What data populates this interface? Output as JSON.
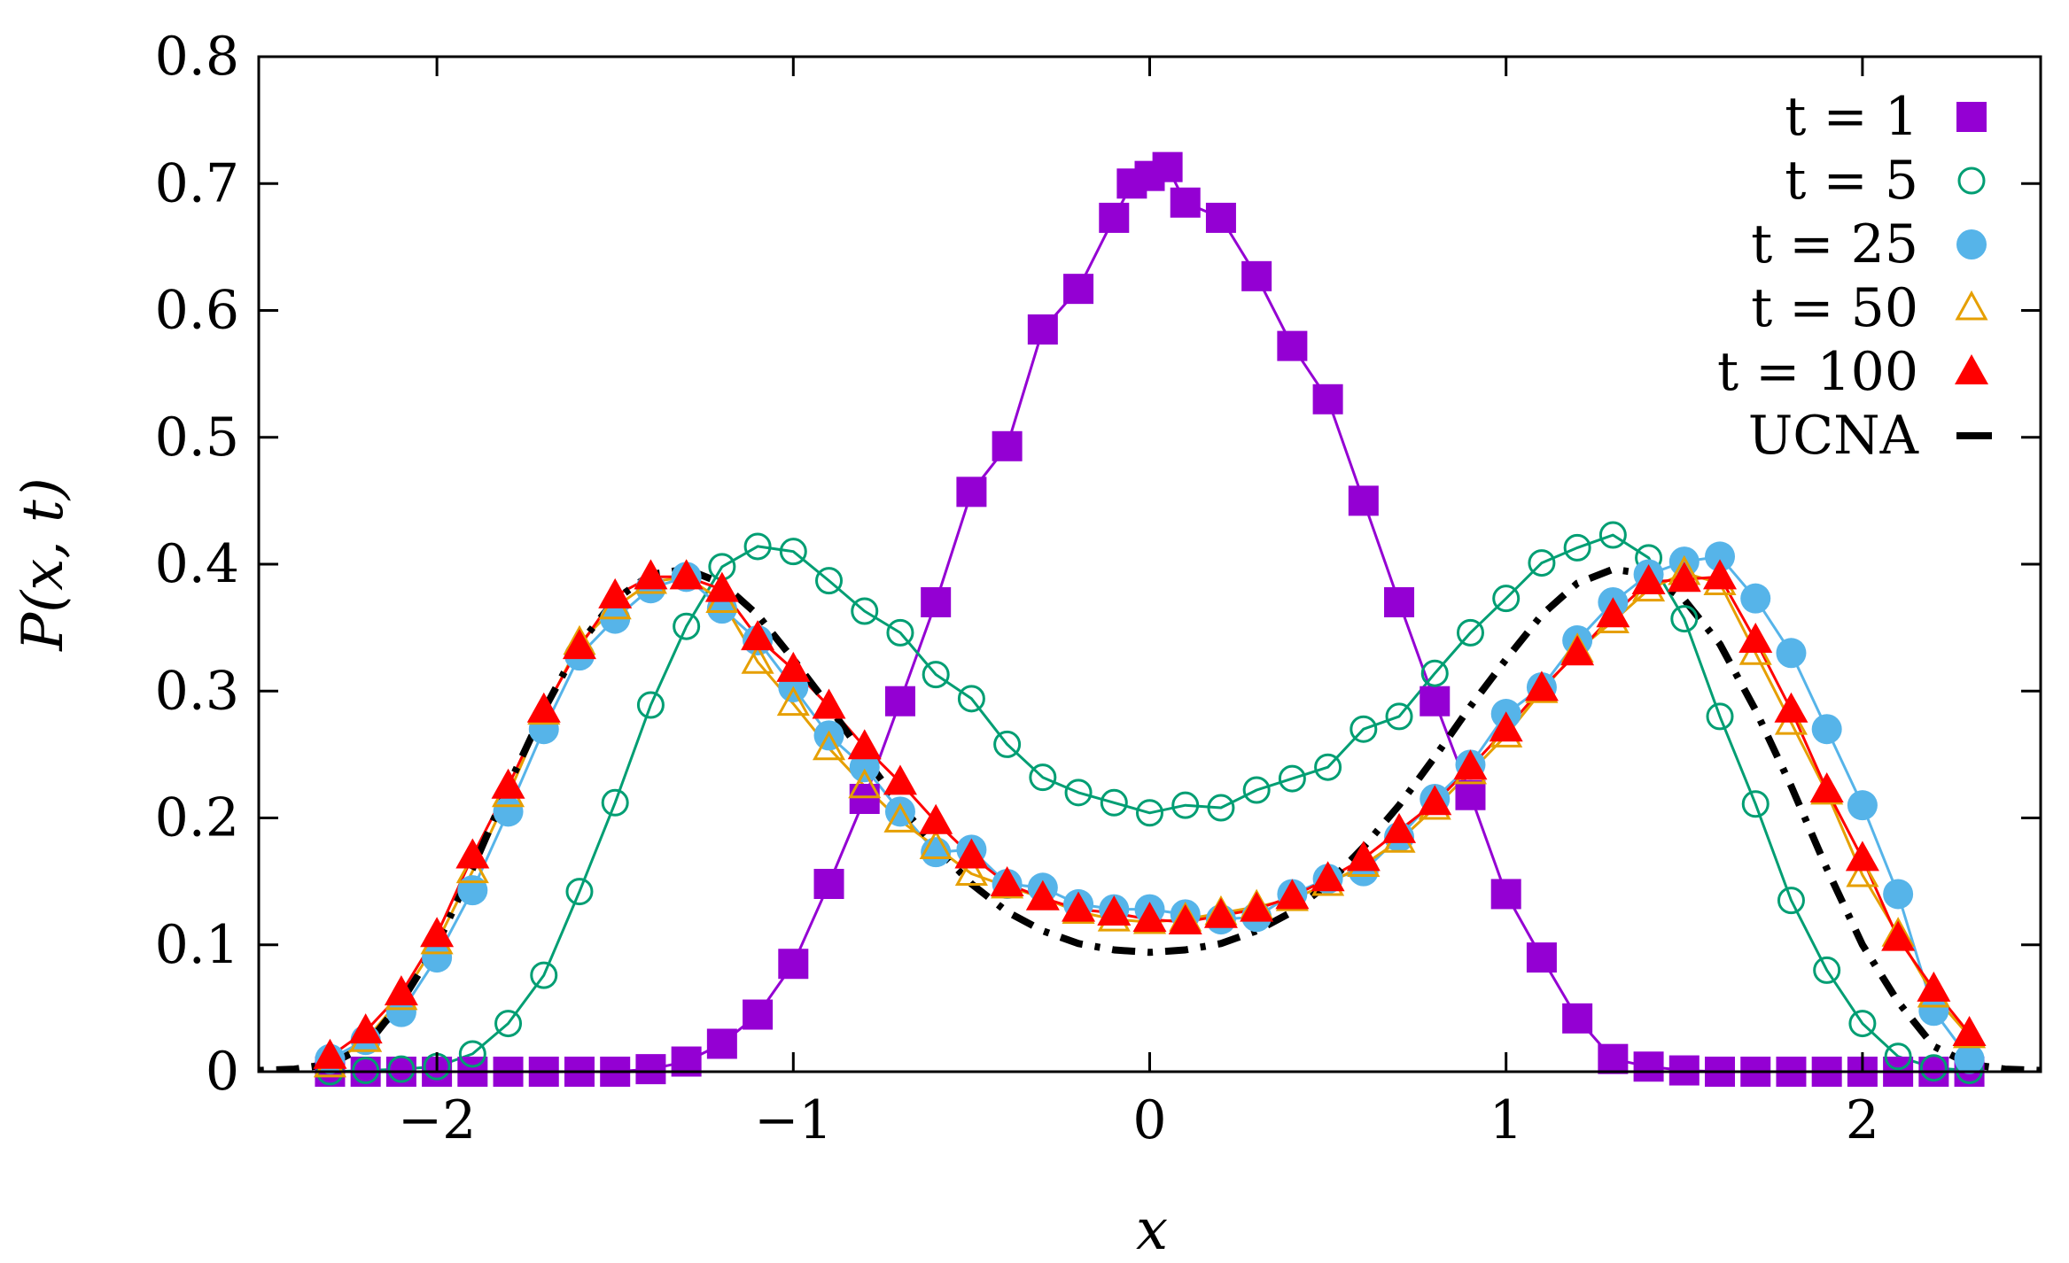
{
  "chart_data": {
    "type": "line",
    "title": "",
    "xlabel": "x",
    "ylabel": "P(x, t)",
    "xlim": [
      -2.5,
      2.5
    ],
    "ylim": [
      0,
      0.8
    ],
    "xticks": [
      -2,
      -1,
      0,
      1,
      2
    ],
    "xtick_labels": [
      "−2",
      "−1",
      "0",
      "1",
      "2"
    ],
    "yticks": [
      0,
      0.1,
      0.2,
      0.3,
      0.4,
      0.5,
      0.6,
      0.7,
      0.8
    ],
    "ytick_labels": [
      "0",
      "0.1",
      "0.2",
      "0.3",
      "0.4",
      "0.5",
      "0.6",
      "0.7",
      "0.8"
    ],
    "grid": false,
    "legend_position": "top-right",
    "series": [
      {
        "name": "t = 1",
        "color": "#9400d3",
        "marker": "filled-square",
        "x": [
          -2.3,
          -2.2,
          -2.1,
          -2.0,
          -1.9,
          -1.8,
          -1.7,
          -1.6,
          -1.5,
          -1.4,
          -1.3,
          -1.2,
          -1.1,
          -1.0,
          -0.9,
          -0.8,
          -0.7,
          -0.6,
          -0.5,
          -0.4,
          -0.3,
          -0.2,
          -0.1,
          -0.05,
          0.0,
          0.05,
          0.1,
          0.2,
          0.3,
          0.4,
          0.5,
          0.6,
          0.7,
          0.8,
          0.9,
          1.0,
          1.1,
          1.2,
          1.3,
          1.4,
          1.5,
          1.6,
          1.7,
          1.8,
          1.9,
          2.0,
          2.1,
          2.2,
          2.3
        ],
        "y": [
          0,
          0,
          0,
          0,
          0,
          0,
          0,
          0,
          0,
          0.002,
          0.008,
          0.022,
          0.045,
          0.085,
          0.148,
          0.215,
          0.292,
          0.37,
          0.457,
          0.493,
          0.585,
          0.617,
          0.673,
          0.7,
          0.706,
          0.713,
          0.685,
          0.673,
          0.627,
          0.572,
          0.53,
          0.45,
          0.37,
          0.292,
          0.218,
          0.14,
          0.09,
          0.042,
          0.01,
          0.004,
          0.001,
          0,
          0,
          0,
          0,
          0,
          0,
          0,
          0
        ]
      },
      {
        "name": "t = 5",
        "color": "#009e73",
        "marker": "open-circle",
        "x": [
          -2.3,
          -2.2,
          -2.1,
          -2.0,
          -1.9,
          -1.8,
          -1.7,
          -1.6,
          -1.5,
          -1.4,
          -1.3,
          -1.2,
          -1.1,
          -1.0,
          -0.9,
          -0.8,
          -0.7,
          -0.6,
          -0.5,
          -0.4,
          -0.3,
          -0.2,
          -0.1,
          0.0,
          0.1,
          0.2,
          0.3,
          0.4,
          0.5,
          0.6,
          0.7,
          0.8,
          0.9,
          1.0,
          1.1,
          1.2,
          1.3,
          1.4,
          1.5,
          1.6,
          1.7,
          1.8,
          1.9,
          2.0,
          2.1,
          2.2,
          2.3
        ],
        "y": [
          0,
          0.001,
          0.002,
          0.004,
          0.014,
          0.038,
          0.076,
          0.142,
          0.212,
          0.289,
          0.351,
          0.398,
          0.414,
          0.41,
          0.387,
          0.363,
          0.346,
          0.313,
          0.294,
          0.258,
          0.232,
          0.22,
          0.212,
          0.204,
          0.21,
          0.208,
          0.222,
          0.231,
          0.24,
          0.27,
          0.28,
          0.314,
          0.346,
          0.373,
          0.401,
          0.413,
          0.423,
          0.405,
          0.357,
          0.28,
          0.211,
          0.135,
          0.08,
          0.038,
          0.012,
          0.003,
          0.001
        ]
      },
      {
        "name": "t = 25",
        "color": "#56b4e9",
        "marker": "filled-circle",
        "x": [
          -2.3,
          -2.2,
          -2.1,
          -2.0,
          -1.9,
          -1.8,
          -1.7,
          -1.6,
          -1.5,
          -1.4,
          -1.3,
          -1.2,
          -1.1,
          -1.0,
          -0.9,
          -0.8,
          -0.7,
          -0.6,
          -0.5,
          -0.4,
          -0.3,
          -0.2,
          -0.1,
          0.0,
          0.1,
          0.2,
          0.3,
          0.4,
          0.5,
          0.6,
          0.7,
          0.8,
          0.9,
          1.0,
          1.1,
          1.2,
          1.3,
          1.4,
          1.5,
          1.6,
          1.7,
          1.8,
          1.9,
          2.0,
          2.1,
          2.2,
          2.3
        ],
        "y": [
          0.01,
          0.025,
          0.047,
          0.09,
          0.143,
          0.205,
          0.27,
          0.328,
          0.357,
          0.381,
          0.39,
          0.365,
          0.34,
          0.303,
          0.265,
          0.24,
          0.205,
          0.173,
          0.175,
          0.148,
          0.145,
          0.132,
          0.128,
          0.128,
          0.124,
          0.12,
          0.122,
          0.14,
          0.152,
          0.158,
          0.185,
          0.215,
          0.242,
          0.282,
          0.303,
          0.34,
          0.37,
          0.392,
          0.402,
          0.406,
          0.373,
          0.33,
          0.27,
          0.21,
          0.14,
          0.048,
          0.01
        ]
      },
      {
        "name": "t = 50",
        "color": "#e69f00",
        "marker": "open-triangle",
        "x": [
          -2.3,
          -2.2,
          -2.1,
          -2.0,
          -1.9,
          -1.8,
          -1.7,
          -1.6,
          -1.5,
          -1.4,
          -1.3,
          -1.2,
          -1.1,
          -1.0,
          -0.9,
          -0.8,
          -0.7,
          -0.6,
          -0.5,
          -0.4,
          -0.3,
          -0.2,
          -0.1,
          0.0,
          0.1,
          0.2,
          0.3,
          0.4,
          0.5,
          0.6,
          0.7,
          0.8,
          0.9,
          1.0,
          1.1,
          1.2,
          1.3,
          1.4,
          1.5,
          1.6,
          1.7,
          1.8,
          1.9,
          2.0,
          2.1,
          2.2,
          2.3
        ],
        "y": [
          0.005,
          0.025,
          0.058,
          0.102,
          0.158,
          0.218,
          0.283,
          0.338,
          0.366,
          0.386,
          0.39,
          0.371,
          0.323,
          0.29,
          0.255,
          0.225,
          0.198,
          0.177,
          0.156,
          0.146,
          0.137,
          0.126,
          0.12,
          0.118,
          0.12,
          0.125,
          0.13,
          0.136,
          0.148,
          0.163,
          0.182,
          0.208,
          0.236,
          0.265,
          0.3,
          0.332,
          0.355,
          0.38,
          0.393,
          0.385,
          0.33,
          0.275,
          0.22,
          0.155,
          0.108,
          0.06,
          0.028
        ]
      },
      {
        "name": "t = 100",
        "color": "#ff0000",
        "marker": "filled-triangle",
        "x": [
          -2.3,
          -2.2,
          -2.1,
          -2.0,
          -1.9,
          -1.8,
          -1.7,
          -1.6,
          -1.5,
          -1.4,
          -1.3,
          -1.2,
          -1.1,
          -1.0,
          -0.9,
          -0.8,
          -0.7,
          -0.6,
          -0.5,
          -0.4,
          -0.3,
          -0.2,
          -0.1,
          0.0,
          0.1,
          0.2,
          0.3,
          0.4,
          0.5,
          0.6,
          0.7,
          0.8,
          0.9,
          1.0,
          1.1,
          1.2,
          1.3,
          1.4,
          1.5,
          1.6,
          1.7,
          1.8,
          1.9,
          2.0,
          2.1,
          2.2,
          2.3
        ],
        "y": [
          0.012,
          0.032,
          0.062,
          0.108,
          0.17,
          0.225,
          0.285,
          0.335,
          0.375,
          0.39,
          0.39,
          0.38,
          0.342,
          0.317,
          0.288,
          0.256,
          0.228,
          0.197,
          0.17,
          0.148,
          0.137,
          0.128,
          0.125,
          0.12,
          0.118,
          0.123,
          0.128,
          0.138,
          0.152,
          0.168,
          0.19,
          0.212,
          0.24,
          0.27,
          0.302,
          0.33,
          0.36,
          0.386,
          0.388,
          0.39,
          0.34,
          0.285,
          0.222,
          0.168,
          0.105,
          0.065,
          0.03
        ]
      },
      {
        "name": "UCNA",
        "color": "#000000",
        "marker": "none",
        "style": "dash-dot",
        "x": [
          -2.6,
          -2.5,
          -2.4,
          -2.3,
          -2.2,
          -2.1,
          -2.0,
          -1.9,
          -1.8,
          -1.7,
          -1.6,
          -1.5,
          -1.4,
          -1.3,
          -1.2,
          -1.1,
          -1.0,
          -0.9,
          -0.8,
          -0.7,
          -0.6,
          -0.5,
          -0.4,
          -0.3,
          -0.2,
          -0.1,
          0.0,
          0.1,
          0.2,
          0.3,
          0.4,
          0.5,
          0.6,
          0.7,
          0.8,
          0.9,
          1.0,
          1.1,
          1.2,
          1.3,
          1.4,
          1.5,
          1.6,
          1.7,
          1.8,
          1.9,
          2.0,
          2.1,
          2.2,
          2.3,
          2.4,
          2.5,
          2.6
        ],
        "y": [
          0.0,
          0.001,
          0.002,
          0.006,
          0.02,
          0.055,
          0.1,
          0.16,
          0.225,
          0.285,
          0.337,
          0.372,
          0.392,
          0.396,
          0.385,
          0.36,
          0.325,
          0.288,
          0.248,
          0.21,
          0.177,
          0.148,
          0.126,
          0.111,
          0.101,
          0.096,
          0.094,
          0.096,
          0.101,
          0.111,
          0.126,
          0.148,
          0.177,
          0.21,
          0.248,
          0.288,
          0.325,
          0.36,
          0.385,
          0.396,
          0.392,
          0.372,
          0.337,
          0.285,
          0.225,
          0.16,
          0.1,
          0.055,
          0.02,
          0.006,
          0.002,
          0.001,
          0.0
        ]
      }
    ]
  }
}
